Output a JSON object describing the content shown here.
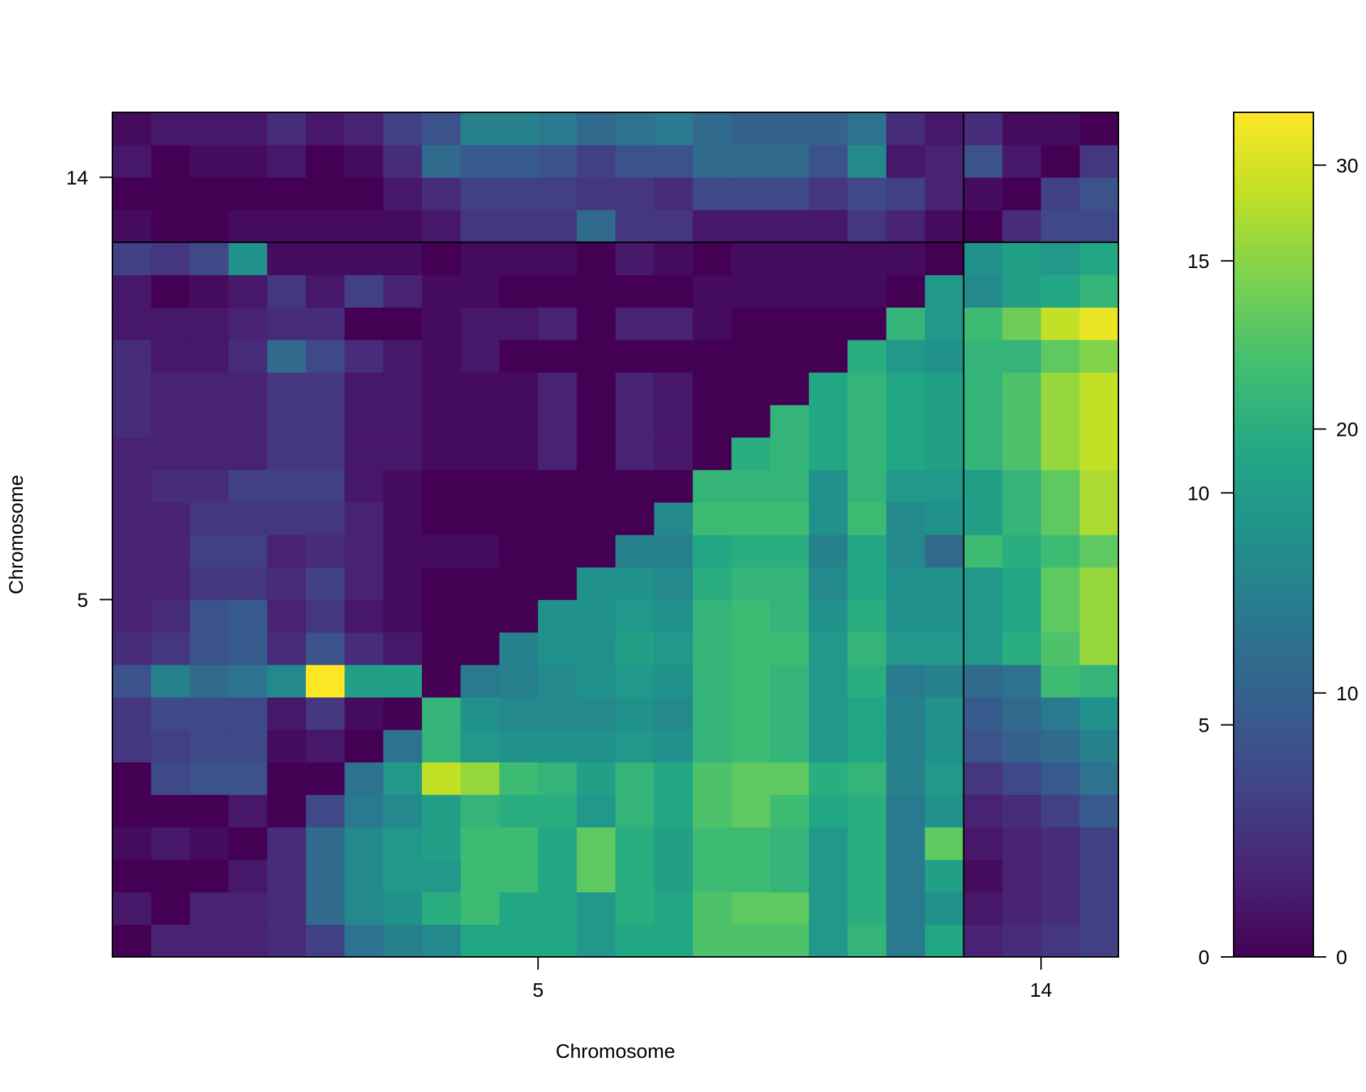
{
  "chart_data": {
    "type": "heatmap",
    "title": "",
    "xlabel": "Chromosome",
    "ylabel": "Chromosome",
    "xticks": [
      "5",
      "14"
    ],
    "yticks": [
      "5",
      "14"
    ],
    "n_markers": 26,
    "chromosome_boundary_marker_index": 22,
    "colorscale": "viridis",
    "colorbar_left_ticks": [
      "0",
      "5",
      "10",
      "15"
    ],
    "colorbar_left_range": [
      0,
      18.2
    ],
    "colorbar_right_ticks": [
      "0",
      "10",
      "20",
      "30"
    ],
    "colorbar_right_range": [
      0,
      32
    ],
    "row_order": "bottom-to-top",
    "values_note_range": [
      0,
      32
    ],
    "matrix": [
      [
        0,
        3,
        3,
        3,
        4,
        6,
        12,
        14,
        15,
        19,
        19,
        19,
        17,
        19,
        19,
        23,
        23,
        23,
        17,
        21,
        13,
        19,
        3,
        4,
        5,
        6
      ],
      [
        2,
        0,
        3,
        3,
        4,
        11,
        15,
        16,
        20,
        22,
        19,
        19,
        17,
        20,
        19,
        23,
        24,
        24,
        17,
        20,
        13,
        16,
        2,
        3,
        4,
        6
      ],
      [
        0,
        0,
        0,
        2,
        4,
        11,
        15,
        17,
        17,
        22,
        22,
        19,
        24,
        20,
        18,
        22,
        22,
        21,
        17,
        20,
        13,
        18,
        1,
        3,
        4,
        6
      ],
      [
        1,
        2,
        1,
        0,
        4,
        11,
        15,
        17,
        18,
        22,
        22,
        19,
        24,
        20,
        18,
        22,
        22,
        21,
        17,
        20,
        13,
        24,
        2,
        3,
        4,
        6
      ],
      [
        0,
        0,
        0,
        2,
        0,
        7,
        13,
        15,
        18,
        21,
        20,
        20,
        17,
        21,
        19,
        23,
        24,
        22,
        19,
        20,
        13,
        16,
        3,
        4,
        6,
        9
      ],
      [
        0,
        7,
        8,
        8,
        0,
        0,
        12,
        17,
        29,
        27,
        22,
        21,
        18,
        21,
        19,
        23,
        24,
        24,
        20,
        21,
        14,
        17,
        5,
        7,
        9,
        12
      ],
      [
        5,
        6,
        7,
        7,
        1,
        2,
        0,
        12,
        21,
        17,
        16,
        16,
        16,
        17,
        16,
        21,
        22,
        21,
        17,
        19,
        14,
        16,
        8,
        10,
        11,
        14
      ],
      [
        5,
        7,
        7,
        7,
        2,
        5,
        1,
        0,
        21,
        16,
        15,
        15,
        15,
        16,
        15,
        21,
        22,
        21,
        17,
        19,
        14,
        16,
        9,
        11,
        13,
        16
      ],
      [
        8,
        14,
        11,
        12,
        15,
        32,
        18,
        18,
        0,
        13,
        14,
        15,
        16,
        17,
        16,
        21,
        22,
        21,
        17,
        20,
        13,
        14,
        11,
        12,
        22,
        21
      ],
      [
        4,
        5,
        8,
        9,
        4,
        8,
        4,
        2,
        0,
        0,
        14,
        16,
        16,
        18,
        17,
        21,
        22,
        22,
        17,
        21,
        17,
        17,
        17,
        20,
        23,
        27
      ],
      [
        3,
        4,
        8,
        9,
        3,
        5,
        2,
        1,
        0,
        0,
        0,
        16,
        16,
        17,
        16,
        21,
        22,
        21,
        16,
        20,
        16,
        16,
        17,
        19,
        24,
        27
      ],
      [
        3,
        3,
        5,
        5,
        4,
        6,
        3,
        1,
        0,
        0,
        0,
        0,
        16,
        16,
        15,
        20,
        21,
        21,
        15,
        19,
        16,
        16,
        17,
        19,
        24,
        27
      ],
      [
        3,
        3,
        6,
        6,
        3,
        4,
        3,
        1,
        1,
        1,
        0,
        0,
        0,
        14,
        14,
        19,
        20,
        20,
        14,
        19,
        15,
        11,
        22,
        20,
        22,
        24
      ],
      [
        3,
        3,
        5,
        5,
        5,
        5,
        3,
        1,
        0,
        0,
        0,
        0,
        0,
        0,
        15,
        22,
        22,
        22,
        16,
        22,
        15,
        16,
        18,
        21,
        24,
        28
      ],
      [
        3,
        4,
        4,
        6,
        6,
        6,
        2,
        1,
        0,
        0,
        0,
        0,
        0,
        0,
        0,
        21,
        21,
        21,
        16,
        21,
        17,
        17,
        18,
        21,
        24,
        28
      ],
      [
        3,
        3,
        3,
        3,
        5,
        5,
        2,
        2,
        1,
        1,
        1,
        3,
        0,
        3,
        2,
        0,
        20,
        21,
        19,
        21,
        19,
        18,
        21,
        23,
        27,
        29
      ],
      [
        4,
        3,
        3,
        3,
        5,
        5,
        2,
        2,
        1,
        1,
        1,
        3,
        0,
        3,
        2,
        0,
        0,
        21,
        19,
        21,
        19,
        18,
        21,
        23,
        27,
        29
      ],
      [
        4,
        3,
        3,
        3,
        5,
        5,
        2,
        2,
        1,
        1,
        1,
        3,
        0,
        3,
        2,
        0,
        0,
        0,
        19,
        21,
        19,
        18,
        21,
        23,
        27,
        29
      ],
      [
        4,
        2,
        2,
        4,
        11,
        7,
        4,
        2,
        1,
        2,
        0,
        0,
        0,
        0,
        0,
        0,
        0,
        0,
        0,
        20,
        17,
        16,
        21,
        21,
        24,
        26
      ],
      [
        2,
        2,
        2,
        3,
        4,
        4,
        0,
        0,
        1,
        2,
        2,
        3,
        0,
        3,
        3,
        1,
        0,
        0,
        0,
        0,
        21,
        17,
        22,
        25,
        29,
        31
      ],
      [
        2,
        0,
        1,
        2,
        5,
        2,
        6,
        3,
        1,
        1,
        0,
        0,
        0,
        0,
        0,
        1,
        1,
        1,
        1,
        1,
        0,
        17,
        15,
        18,
        19,
        21
      ],
      [
        6,
        5,
        7,
        16,
        1,
        1,
        1,
        1,
        0,
        1,
        1,
        1,
        0,
        2,
        1,
        0,
        1,
        1,
        1,
        1,
        1,
        0,
        16,
        18,
        17,
        19
      ],
      [
        1,
        0,
        0,
        1,
        1,
        1,
        1,
        1,
        2,
        5,
        5,
        5,
        11,
        5,
        5,
        2,
        2,
        2,
        2,
        5,
        3,
        1,
        0,
        4,
        7,
        7
      ],
      [
        0,
        0,
        0,
        0,
        0,
        0,
        0,
        2,
        4,
        6,
        6,
        6,
        5,
        5,
        4,
        7,
        7,
        7,
        5,
        7,
        6,
        3,
        1,
        0,
        6,
        8
      ],
      [
        2,
        0,
        1,
        1,
        2,
        0,
        1,
        4,
        11,
        9,
        9,
        8,
        6,
        8,
        8,
        11,
        11,
        11,
        8,
        15,
        2,
        3,
        8,
        2,
        0,
        5
      ],
      [
        1,
        2,
        2,
        2,
        4,
        2,
        3,
        6,
        8,
        14,
        14,
        13,
        11,
        12,
        13,
        11,
        10,
        10,
        10,
        12,
        4,
        2,
        4,
        1,
        1,
        0
      ]
    ]
  }
}
